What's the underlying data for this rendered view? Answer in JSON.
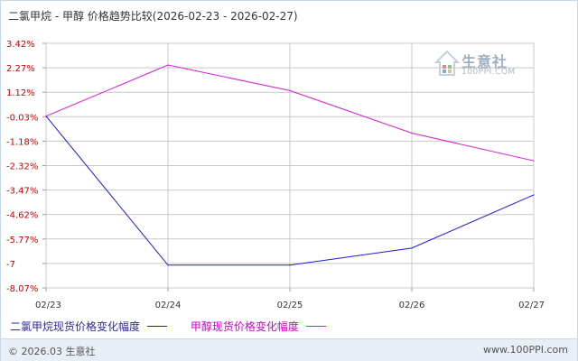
{
  "chart_data": {
    "type": "line",
    "title": "二氯甲烷 - 甲醇 价格趋势比较(2026-02-23 - 2026-02-27)",
    "categories": [
      "02/23",
      "02/24",
      "02/25",
      "02/26",
      "02/27"
    ],
    "yticks": [
      "3.42%",
      "2.27%",
      "1.12%",
      "-0.03%",
      "-1.18%",
      "-2.32%",
      "-3.47%",
      "-4.62%",
      "-5.77%",
      "-7",
      "-8.07%"
    ],
    "ylim": [
      -8.07,
      3.42
    ],
    "grid": true,
    "legend_position": "bottom",
    "series": [
      {
        "name": "二氯甲烷现货价格变化幅度",
        "color": "#1a1ad6",
        "values": [
          0,
          -7,
          -7,
          -6.2,
          -3.7
        ]
      },
      {
        "name": "甲醇现货价格变化幅度",
        "color": "#d61ad6",
        "values": [
          0,
          2.4,
          1.2,
          -0.8,
          -2.1
        ]
      }
    ]
  },
  "watermark": {
    "name": "生意社",
    "url": "100PPI.COM"
  },
  "footer": {
    "copyright": "© 2026.03 生意社",
    "site": "www.100PPI.com"
  }
}
